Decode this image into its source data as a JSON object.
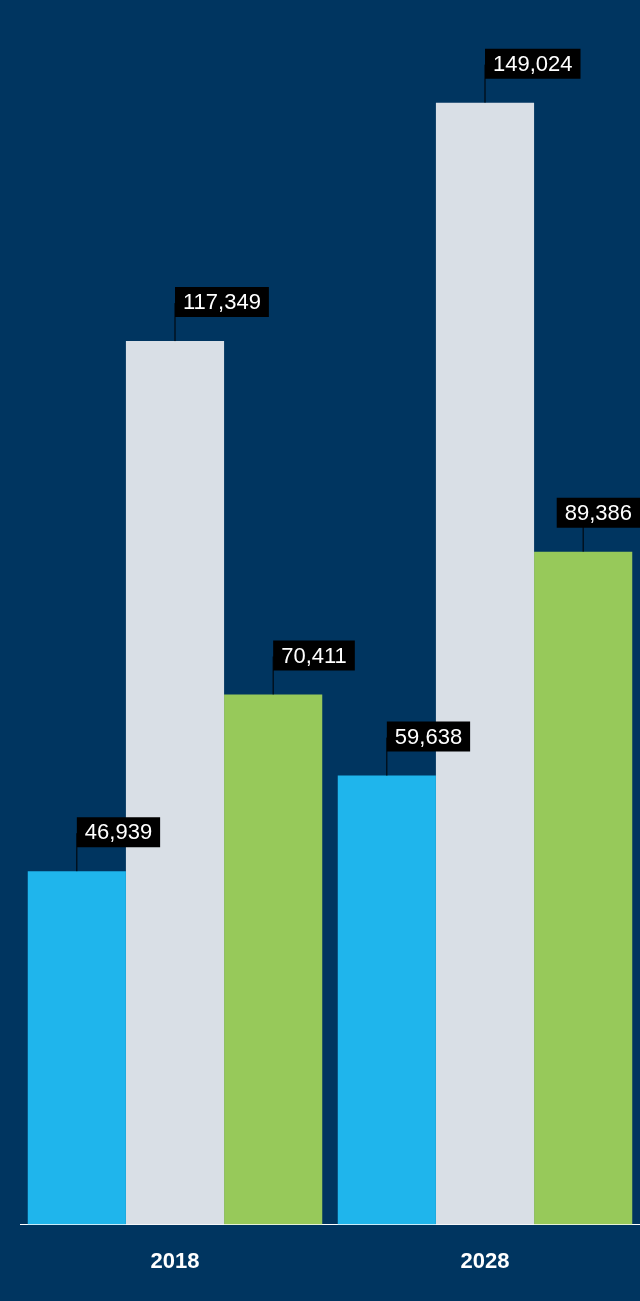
{
  "chart_data": {
    "type": "bar",
    "categories": [
      "2018",
      "2028"
    ],
    "series": [
      {
        "color": "#1fb5ec",
        "values": [
          46939,
          59638
        ],
        "value_labels": [
          "46,939",
          "59,638"
        ]
      },
      {
        "color": "#d9dfe6",
        "values": [
          117349,
          149024
        ],
        "value_labels": [
          "117,349",
          "149,024"
        ]
      },
      {
        "color": "#97c95a",
        "values": [
          70411,
          89386
        ],
        "value_labels": [
          "70,411",
          "89,386"
        ]
      }
    ],
    "tick_labels": "x",
    "grid": false,
    "legend": false
  }
}
